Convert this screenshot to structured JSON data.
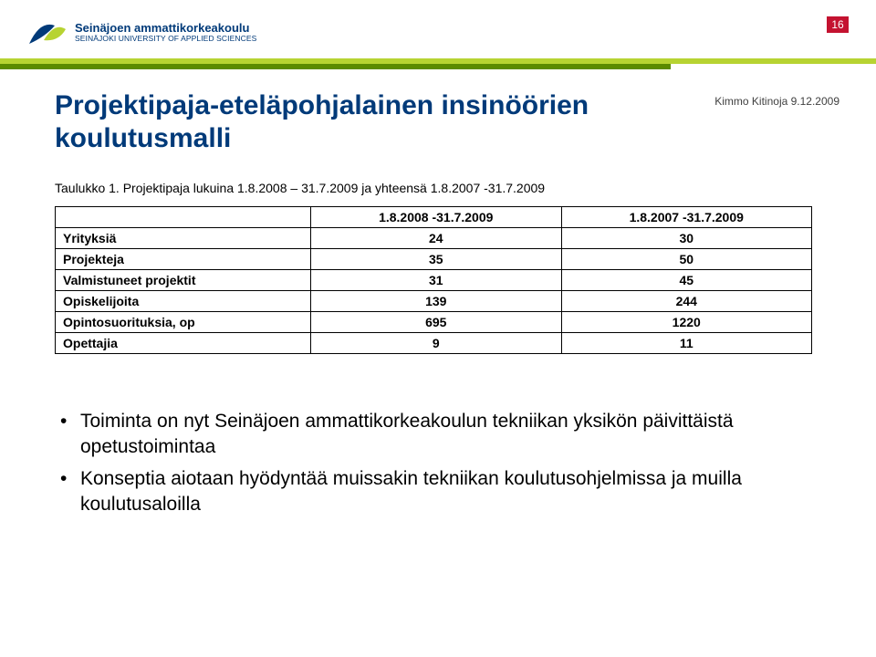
{
  "header": {
    "institution_main": "Seinäjoen ammattikorkeakoulu",
    "institution_sub": "SEINÄJOKI UNIVERSITY OF APPLIED SCIENCES",
    "page_number": "16"
  },
  "logo": {
    "blue": "#003a79",
    "light_green": "#b7d332",
    "dark_green": "#5b8a00"
  },
  "title": "Projektipaja-eteläpohjalainen insinöörien koulutusmalli",
  "meta": "Kimmo Kitinoja 9.12.2009",
  "table": {
    "caption": "Taulukko 1. Projektipaja lukuina 1.8.2008 – 31.7.2009 ja yhteensä 1.8.2007 -31.7.2009",
    "columns": [
      "",
      "1.8.2008 -31.7.2009",
      "1.8.2007 -31.7.2009"
    ],
    "rows": [
      [
        "Yrityksiä",
        "24",
        "30"
      ],
      [
        "Projekteja",
        "35",
        "50"
      ],
      [
        "Valmistuneet projektit",
        "31",
        "45"
      ],
      [
        "Opiskelijoita",
        "139",
        "244"
      ],
      [
        "Opintosuorituksia, op",
        "695",
        "1220"
      ],
      [
        "Opettajia",
        "9",
        "11"
      ]
    ]
  },
  "bullets": [
    "Toiminta on nyt Seinäjoen ammattikorkeakoulun tekniikan yksikön päivittäistä opetustoimintaa",
    "Konseptia aiotaan hyödyntää muissakin tekniikan koulutusohjelmissa ja muilla koulutusaloilla"
  ]
}
